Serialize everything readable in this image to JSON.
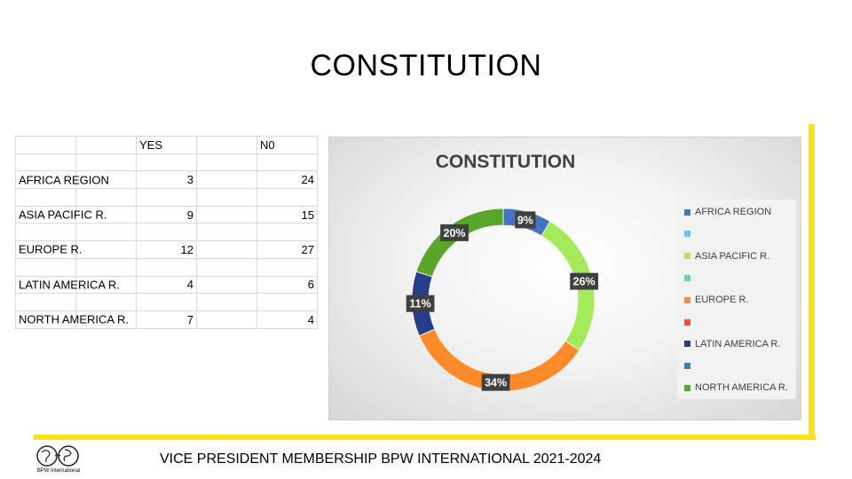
{
  "slide": {
    "title": "CONSTITUTION",
    "footer": "VICE PRESIDENT MEMBERSHIP BPW INTERNATIONAL 2021-2024",
    "logo_caption": "BPW International"
  },
  "table": {
    "headers": [
      "",
      "",
      "YES",
      "",
      "N0"
    ],
    "rows": [
      {
        "region": "",
        "yes": "",
        "no": ""
      },
      {
        "region": "AFRICA REGION",
        "yes": "3",
        "no": "24"
      },
      {
        "region": "",
        "yes": "",
        "no": ""
      },
      {
        "region": "ASIA PACIFIC R.",
        "yes": "9",
        "no": "15"
      },
      {
        "region": "",
        "yes": "",
        "no": ""
      },
      {
        "region": "EUROPE R.",
        "yes": "12",
        "no": "27"
      },
      {
        "region": "",
        "yes": "",
        "no": ""
      },
      {
        "region": "LATIN AMERICA R.",
        "yes": "4",
        "no": "6"
      },
      {
        "region": "",
        "yes": "",
        "no": ""
      },
      {
        "region": "NORTH AMERICA R.",
        "yes": "7",
        "no": "4"
      }
    ]
  },
  "chart_data": {
    "type": "pie",
    "style": "donut",
    "title": "CONSTITUTION",
    "legend_position": "right",
    "categories": [
      "AFRICA REGION",
      "",
      "ASIA PACIFIC R.",
      "",
      "EUROPE R.",
      "",
      "LATIN AMERICA R.",
      "",
      "NORTH AMERICA R."
    ],
    "values": [
      3,
      0,
      9,
      0,
      12,
      0,
      4,
      0,
      7
    ],
    "labels": [
      "9%",
      "",
      "26%",
      "",
      "34%",
      "",
      "11%",
      "",
      "20%"
    ],
    "colors": [
      "#4472c4",
      "#5bc8f0",
      "#a5ea5a",
      "#5fd3b0",
      "#ff8a2a",
      "#f0503c",
      "#263d8c",
      "#2e86c1",
      "#5aa62a"
    ]
  }
}
